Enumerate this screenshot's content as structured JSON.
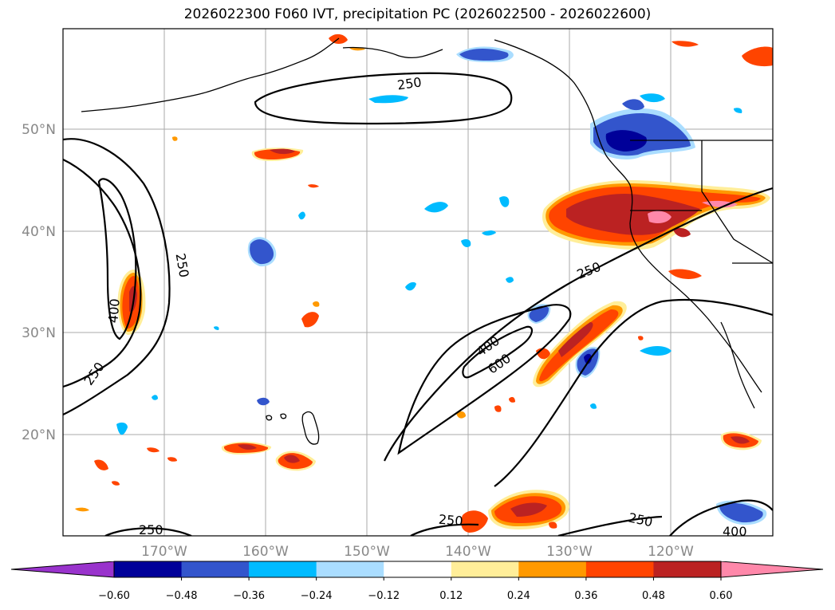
{
  "title": "2026022300 F060 IVT, precipitation PC (2026022500 - 2026022600)",
  "axes": {
    "lat_labels": [
      "50°N",
      "40°N",
      "30°N",
      "20°N"
    ],
    "lon_labels": [
      "170°W",
      "160°W",
      "150°W",
      "140°W",
      "130°W",
      "120°W"
    ]
  },
  "ivt_contour_labels": [
    "250",
    "250",
    "400",
    "250",
    "250",
    "400",
    "600",
    "250",
    "250",
    "400",
    "250"
  ],
  "colorbar": {
    "ticks": [
      "−0.60",
      "−0.48",
      "−0.36",
      "−0.24",
      "−0.12",
      "0.12",
      "0.24",
      "0.36",
      "0.48",
      "0.60"
    ],
    "colors": [
      "#9933cc",
      "#000099",
      "#3355cc",
      "#00bbff",
      "#aaddff",
      "#ffffff",
      "#ffee99",
      "#ff9900",
      "#ff4400",
      "#bb2222",
      "#ff88aa"
    ]
  },
  "palette": {
    "neg_strong": "#000099",
    "neg_mid": "#3355cc",
    "neg_light": "#00bbff",
    "neg_pale": "#aaddff",
    "pos_pale": "#ffee99",
    "pos_light": "#ff9900",
    "pos_mid": "#ff4400",
    "pos_strong": "#bb2222",
    "pos_max": "#ff88aa"
  }
}
